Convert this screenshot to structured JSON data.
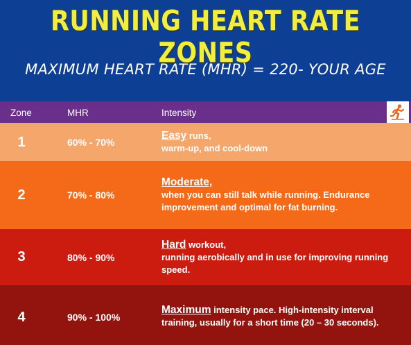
{
  "header": {
    "title": "RUNNING HEART RATE ZONES",
    "formula": "MAXIMUM HEART RATE (MHR) = 220- YOUR AGE"
  },
  "table": {
    "columns": [
      "Zone",
      "MHR",
      "Intensity"
    ],
    "icon": "runner-icon",
    "rows": [
      {
        "zone": "1",
        "mhr": "60% - 70%",
        "keyword": "Easy",
        "keyword_rest": " runs,",
        "description": "warm-up, and cool-down",
        "color": "#f5a66b"
      },
      {
        "zone": "2",
        "mhr": "70% - 80%",
        "keyword": "Moderate,",
        "keyword_rest": "",
        "description": "when you can still talk while running. Endurance improvement and optimal for fat burning.",
        "color": "#f46a18"
      },
      {
        "zone": "3",
        "mhr": "80% - 90%",
        "keyword": "Hard",
        "keyword_rest": " workout,",
        "description": "running aerobically and in use for improving running speed.",
        "color": "#cc1c10"
      },
      {
        "zone": "4",
        "mhr": "90% - 100%",
        "keyword": "Maximum",
        "keyword_rest": " intensity pace. High-intensity interval training, usually for a short time (20 – 30 seconds).",
        "description": "",
        "color": "#93140e"
      }
    ]
  },
  "colors": {
    "header_bg": "#0d3f94",
    "title": "#f2ee3c",
    "column_header_bg": "#6a2f8a",
    "icon_accent": "#e8641e"
  }
}
